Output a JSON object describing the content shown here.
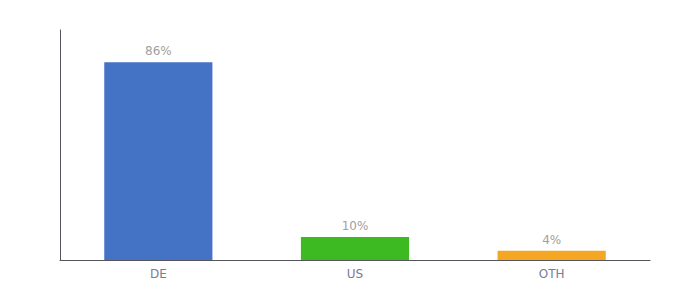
{
  "chart_data": {
    "type": "bar",
    "categories": [
      "DE",
      "US",
      "OTH"
    ],
    "values": [
      86,
      10,
      4
    ],
    "value_labels": [
      "86%",
      "10%",
      "4%"
    ],
    "colors": [
      "#4472c4",
      "#3dba22",
      "#f5a623"
    ],
    "ylim": [
      0,
      100
    ],
    "tick_labels": "x",
    "grid": false
  }
}
